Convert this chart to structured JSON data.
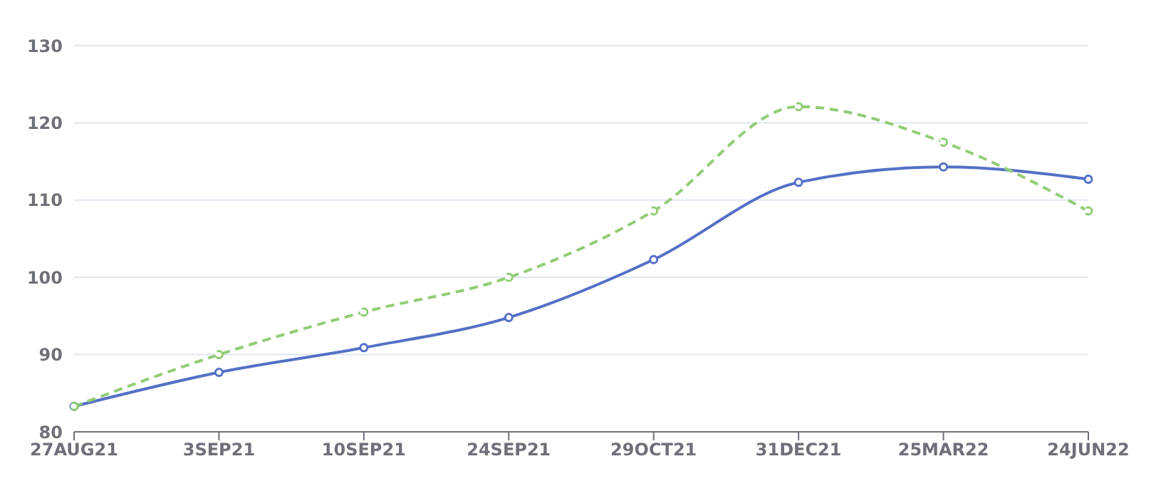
{
  "chart_data": {
    "type": "line",
    "categories": [
      "27AUG21",
      "3SEP21",
      "10SEP21",
      "24SEP21",
      "29OCT21",
      "31DEC21",
      "25MAR22",
      "24JUN22"
    ],
    "series": [
      {
        "color": "#5470c6",
        "line_style": "solid",
        "values": [
          83.3,
          87.7,
          90.9,
          94.8,
          102.3,
          112.3,
          114.3,
          112.7
        ]
      },
      {
        "color": "#91cc75",
        "line_style": "dashed",
        "values": [
          83.3,
          90.0,
          95.5,
          100.0,
          108.6,
          122.1,
          117.5,
          108.6
        ]
      }
    ],
    "ylim": [
      80,
      130
    ],
    "yticks": [
      80,
      90,
      100,
      110,
      120,
      130
    ],
    "grid": "y",
    "marker": "circle"
  }
}
